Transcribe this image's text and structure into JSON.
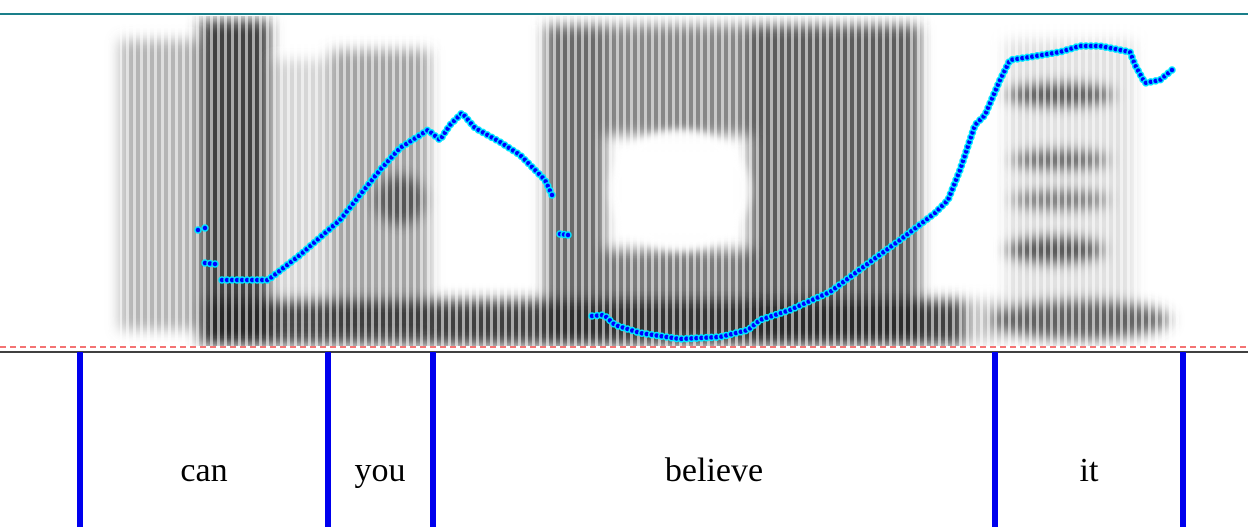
{
  "text_grid": {
    "words": [
      "can",
      "you",
      "believe",
      "it"
    ]
  }
}
